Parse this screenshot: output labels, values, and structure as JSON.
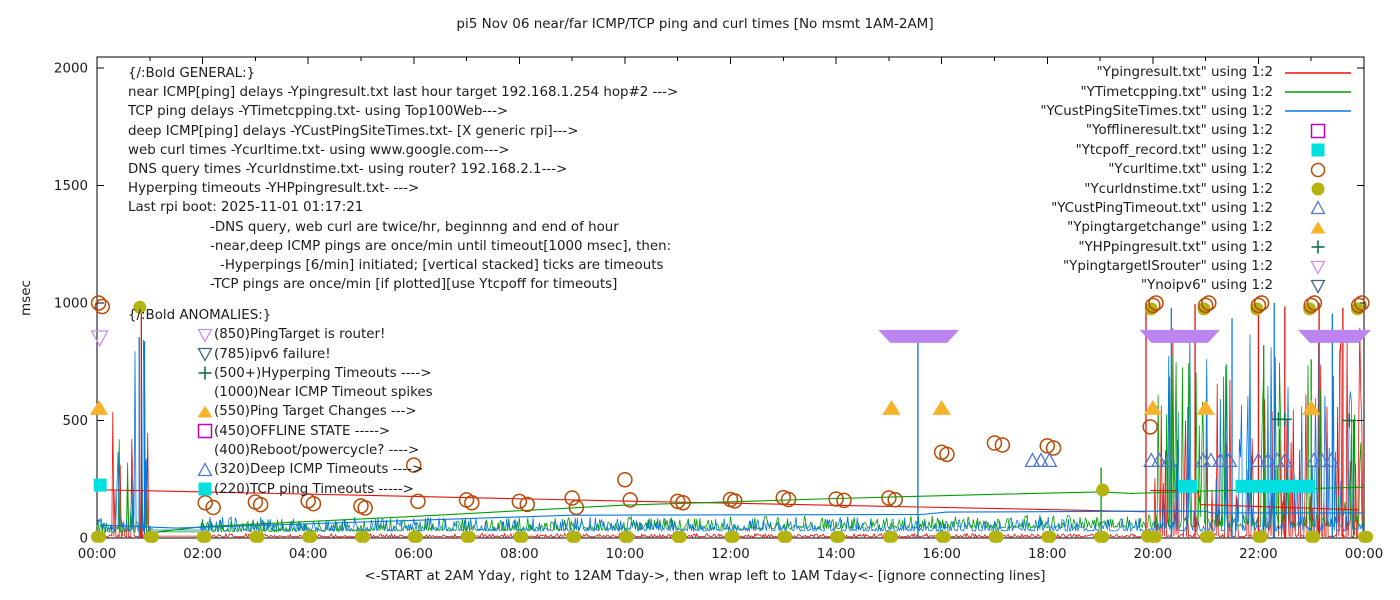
{
  "chart_data": {
    "type": "line",
    "title": "pi5 Nov 06  near/far ICMP/TCP ping and curl times [No msmt 1AM-2AM]",
    "xlabel": "<-START at 2AM Yday, right to 12AM Tday->, then wrap left to 1AM Tday<- [ignore connecting lines]",
    "ylabel": "msec",
    "ylim": [
      0,
      2000
    ],
    "y_ticks": [
      0,
      500,
      1000,
      1500,
      2000
    ],
    "x_hours": [
      0,
      24
    ],
    "x_tick_labels": [
      "00:00",
      "02:00",
      "04:00",
      "06:00",
      "08:00",
      "10:00",
      "12:00",
      "14:00",
      "16:00",
      "18:00",
      "20:00",
      "22:00",
      "00:00"
    ],
    "grid": false,
    "legend_position": "top-right-inside",
    "colors": {
      "red": "#e8120c",
      "green": "#00a000",
      "blue": "#0878e0",
      "magenta": "#bf00bf",
      "cyan": "#00e0e0",
      "orange_brown": "#b84a05",
      "olive": "#b4b410",
      "royal": "#5078d0",
      "orange": "#f8b32d",
      "dark_green": "#106e50",
      "violet": "#c98ef2",
      "violet_fill": "#bb84ee",
      "slate": "#3d6a80",
      "axis": "#000000"
    },
    "legend": [
      {
        "label": "\"Ypingresult.txt\" using 1:2",
        "glyph": "line",
        "color": "red"
      },
      {
        "label": "\"YTimetcpping.txt\" using 1:2",
        "glyph": "line",
        "color": "green"
      },
      {
        "label": "\"YCustPingSiteTimes.txt\" using 1:2",
        "glyph": "line",
        "color": "blue"
      },
      {
        "label": "\"Yofflineresult.txt\" using 1:2",
        "glyph": "square-open",
        "color": "magenta"
      },
      {
        "label": "\"Ytcpoff_record.txt\" using 1:2",
        "glyph": "square-fill",
        "color": "cyan"
      },
      {
        "label": "\"Ycurltime.txt\" using 1:2",
        "glyph": "circle-open",
        "color": "orange_brown"
      },
      {
        "label": "\"Ycurldnstime.txt\" using 1:2",
        "glyph": "circle-fill",
        "color": "olive"
      },
      {
        "label": "\"YCustPingTimeout.txt\" using 1:2",
        "glyph": "tri-up-open",
        "color": "royal"
      },
      {
        "label": "\"Ypingtargetchange\" using 1:2",
        "glyph": "tri-up-fill",
        "color": "orange"
      },
      {
        "label": "\"YHPpingresult.txt\" using 1:2",
        "glyph": "plus",
        "color": "dark_green"
      },
      {
        "label": "\"YpingtargetISrouter\" using 1:2",
        "glyph": "tri-down-open",
        "color": "violet"
      },
      {
        "label": "\"Ynoipv6\" using 1:2",
        "glyph": "tri-down-open",
        "color": "slate"
      }
    ],
    "annotations": {
      "general": {
        "heading": "{/:Bold GENERAL:}",
        "lines": [
          "near ICMP[ping] delays -Ypingresult.txt last hour target 192.168.1.254 hop#2 --->",
          "TCP ping delays -YTimetcpping.txt- using Top100Web--->",
          "deep ICMP[ping] delays -YCustPingSiteTimes.txt- [X generic rpi]--->",
          "web curl times -Ycurltime.txt- using www.google.com--->",
          "DNS query times -Ycurldnstime.txt- using router? 192.168.2.1--->",
          "Hyperping timeouts -YHPpingresult.txt- --->",
          "Last rpi boot: 2025-11-01 01:17:21"
        ],
        "indented_lines": [
          "-DNS query, web curl are twice/hr, beginnng and end of hour",
          "-near,deep ICMP pings are once/min until timeout[1000 msec], then:",
          "-Hyperpings [6/min] initiated; [vertical stacked] ticks are timeouts",
          "-TCP pings are once/min [if plotted][use Ytcpoff for timeouts]"
        ]
      },
      "anomalies": {
        "heading": "{/:Bold ANOMALIES:}",
        "rows": [
          {
            "glyph": "tri-down-open",
            "color": "violet",
            "label": "(850)PingTarget is router!"
          },
          {
            "glyph": "tri-down-open",
            "color": "slate",
            "label": "(785)ipv6 failure!"
          },
          {
            "glyph": "plus",
            "color": "dark_green",
            "label": "(500+)Hyperping Timeouts ---->"
          },
          {
            "glyph": null,
            "color": null,
            "label": "(1000)Near ICMP Timeout spikes"
          },
          {
            "glyph": "tri-up-fill",
            "color": "orange",
            "label": "(550)Ping Target Changes --->"
          },
          {
            "glyph": "square-open",
            "color": "magenta",
            "label": "(450)OFFLINE STATE ----->"
          },
          {
            "glyph": null,
            "color": null,
            "label": "(400)Reboot/powercycle? ---->"
          },
          {
            "glyph": "tri-up-open",
            "color": "royal",
            "label": "(320)Deep ICMP Timeouts ---->"
          },
          {
            "glyph": "square-fill",
            "color": "cyan",
            "label": "(220)TCP ping Timeouts ----->"
          }
        ]
      }
    },
    "series_render": {
      "red": {
        "color": "red",
        "floor": {
          "base": 5,
          "jit": 14,
          "pow": 3,
          "drift": 0
        },
        "quiet": [
          1.05,
          1.98
        ],
        "quiet_v": 8,
        "bursts": [
          {
            "t0": 0.28,
            "t1": 0.97,
            "p": 0.3,
            "min": 60,
            "max": 830
          },
          {
            "t0": 20.02,
            "t1": 23.98,
            "p": 0.32,
            "min": 70,
            "max": 1000
          }
        ],
        "trend": [
          [
            0.05,
            205
          ],
          [
            2,
            196
          ],
          [
            6,
            177
          ],
          [
            10,
            157
          ],
          [
            14,
            139
          ],
          [
            18,
            121
          ],
          [
            19.85,
            112
          ]
        ],
        "trend2": [
          [
            19.95,
            202
          ],
          [
            20.85,
            202
          ],
          [
            20.9,
            142
          ],
          [
            23.9,
            120
          ]
        ],
        "spikes": [
          [
            0.84,
            985
          ],
          [
            19.87,
            1000
          ],
          [
            20.8,
            995
          ],
          [
            22.0,
            1000
          ],
          [
            22.5,
            985
          ],
          [
            23.15,
            1000
          ],
          [
            23.6,
            980
          ]
        ]
      },
      "green": {
        "color": "green",
        "floor": {
          "base": 24,
          "jit": 55,
          "pow": 3,
          "drift": 1.1
        },
        "quiet": [
          1.05,
          1.98
        ],
        "quiet_v": 26,
        "bursts": [
          {
            "t0": 0.3,
            "t1": 0.97,
            "p": 0.3,
            "min": 60,
            "max": 430
          },
          {
            "t0": 20.02,
            "t1": 23.98,
            "p": 0.3,
            "min": 60,
            "max": 800
          }
        ],
        "trend": [
          [
            1,
            22
          ],
          [
            2,
            48
          ],
          [
            6,
            92
          ],
          [
            10,
            140
          ],
          [
            14,
            168
          ],
          [
            17,
            186
          ],
          [
            19,
            196
          ],
          [
            19.6,
            190
          ],
          [
            21,
            200
          ],
          [
            24,
            216
          ]
        ],
        "trend2": [],
        "spikes": [
          [
            19.02,
            300
          ],
          [
            22.1,
            820
          ],
          [
            23.0,
            760
          ],
          [
            23.8,
            500
          ]
        ]
      },
      "blue": {
        "color": "blue",
        "floor": {
          "base": 30,
          "jit": 60,
          "pow": 3,
          "drift": 0
        },
        "quiet": [
          1.05,
          1.98
        ],
        "quiet_v": 34,
        "bursts": [
          {
            "t0": 0.3,
            "t1": 0.97,
            "p": 0.33,
            "min": 80,
            "max": 850
          },
          {
            "t0": 20.02,
            "t1": 23.98,
            "p": 0.3,
            "min": 70,
            "max": 1000
          }
        ],
        "trend": [
          [
            0.05,
            55
          ],
          [
            1.5,
            42
          ],
          [
            8,
            90
          ],
          [
            9,
            97
          ],
          [
            15.6,
            100
          ],
          [
            16.1,
            110
          ],
          [
            19.9,
            114
          ],
          [
            21,
            114
          ],
          [
            21.1,
            107
          ],
          [
            24,
            107
          ]
        ],
        "trend2": [],
        "spikes": [
          [
            0.8,
            855
          ],
          [
            0.9,
            838
          ],
          [
            15.55,
            838
          ],
          [
            20.35,
            980
          ],
          [
            21.5,
            935
          ],
          [
            22.3,
            1000
          ],
          [
            23.4,
            955
          ]
        ]
      }
    },
    "markers": {
      "curl_circles": [
        [
          0.03,
          1000
        ],
        [
          0.1,
          985
        ],
        [
          2.05,
          150
        ],
        [
          2.2,
          130
        ],
        [
          3.0,
          153
        ],
        [
          3.1,
          142
        ],
        [
          4.0,
          158
        ],
        [
          4.1,
          146
        ],
        [
          5.0,
          136
        ],
        [
          5.08,
          128
        ],
        [
          6.0,
          310
        ],
        [
          6.08,
          156
        ],
        [
          7.0,
          162
        ],
        [
          7.1,
          150
        ],
        [
          8.0,
          156
        ],
        [
          8.15,
          143
        ],
        [
          9.0,
          170
        ],
        [
          9.08,
          130
        ],
        [
          10.0,
          248
        ],
        [
          10.1,
          162
        ],
        [
          11.0,
          156
        ],
        [
          11.1,
          150
        ],
        [
          12.0,
          164
        ],
        [
          12.08,
          158
        ],
        [
          13.0,
          172
        ],
        [
          13.1,
          164
        ],
        [
          14.0,
          166
        ],
        [
          14.15,
          160
        ],
        [
          15.0,
          170
        ],
        [
          15.12,
          163
        ],
        [
          16.0,
          365
        ],
        [
          16.1,
          356
        ],
        [
          17.0,
          404
        ],
        [
          17.15,
          396
        ],
        [
          18.0,
          392
        ],
        [
          18.12,
          383
        ],
        [
          19.95,
          473
        ],
        [
          20.0,
          990
        ],
        [
          20.06,
          1000
        ],
        [
          21.0,
          990
        ],
        [
          21.06,
          1000
        ],
        [
          22.0,
          990
        ],
        [
          22.06,
          1000
        ],
        [
          23.0,
          990
        ],
        [
          23.06,
          1000
        ],
        [
          23.9,
          990
        ],
        [
          23.96,
          1000
        ]
      ],
      "dns_low_hours": [
        0,
        1,
        2,
        3,
        4,
        5,
        6,
        7,
        8,
        9,
        10,
        11,
        12,
        13,
        14,
        15,
        16,
        17,
        18,
        19,
        20,
        21,
        22,
        23,
        24
      ],
      "dns_low_value": 5,
      "dns_special": [
        [
          0.81,
          982
        ],
        [
          19.05,
          204
        ],
        [
          19.9,
          8
        ],
        [
          19.97,
          975
        ],
        [
          20.97,
          975
        ],
        [
          21.97,
          975
        ],
        [
          22.97,
          975
        ],
        [
          23.88,
          975
        ]
      ],
      "tcp_off_singles": [
        [
          0.06,
          225
        ],
        [
          20.6,
          220
        ],
        [
          20.72,
          220
        ]
      ],
      "tcp_off_bands": [
        [
          21.68,
          22.3,
          220
        ],
        [
          22.34,
          22.96,
          220
        ]
      ],
      "deep_timeout_triangles": [
        [
          17.72,
          330
        ],
        [
          17.88,
          330
        ],
        [
          18.04,
          330
        ],
        [
          19.97,
          330
        ],
        [
          20.12,
          330
        ],
        [
          20.3,
          330
        ],
        [
          20.95,
          330
        ],
        [
          21.1,
          330
        ],
        [
          21.28,
          330
        ],
        [
          21.45,
          330
        ],
        [
          22.0,
          330
        ],
        [
          22.18,
          330
        ],
        [
          22.35,
          330
        ],
        [
          22.5,
          330
        ],
        [
          23.05,
          330
        ],
        [
          23.2,
          330
        ],
        [
          23.38,
          330
        ]
      ],
      "target_change_triangles": [
        [
          0.04,
          553
        ],
        [
          15.05,
          553
        ],
        [
          16.0,
          553
        ],
        [
          20.0,
          553
        ],
        [
          21.0,
          553
        ],
        [
          23.0,
          553
        ]
      ],
      "hyperping_plus": [
        [
          22.38,
          505
        ],
        [
          22.5,
          505
        ],
        [
          23.72,
          500
        ]
      ],
      "router_singles": [
        [
          0.05,
          852
        ]
      ],
      "router_bands": [
        [
          14.95,
          16.18,
          858
        ],
        [
          19.9,
          21.12,
          858
        ],
        [
          22.9,
          23.98,
          858
        ]
      ],
      "noipv6": []
    }
  }
}
